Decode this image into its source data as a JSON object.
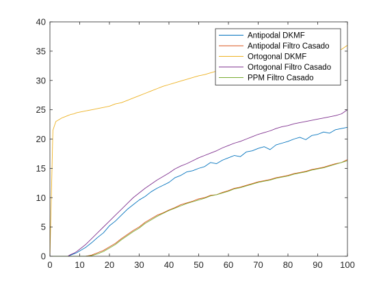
{
  "chart_data": {
    "type": "line",
    "title": "",
    "xlabel": "",
    "ylabel": "",
    "xlim": [
      0,
      100
    ],
    "ylim": [
      0,
      40
    ],
    "xticks": [
      0,
      10,
      20,
      30,
      40,
      50,
      60,
      70,
      80,
      90,
      100
    ],
    "yticks": [
      0,
      5,
      10,
      15,
      20,
      25,
      30,
      35,
      40
    ],
    "grid": false,
    "legend_position": "top-right",
    "x": [
      0,
      1,
      2,
      3,
      4,
      5,
      6,
      7,
      8,
      9,
      10,
      12,
      14,
      16,
      18,
      20,
      22,
      24,
      26,
      28,
      30,
      32,
      34,
      36,
      38,
      40,
      42,
      44,
      46,
      48,
      50,
      52,
      54,
      56,
      58,
      60,
      62,
      64,
      66,
      68,
      70,
      72,
      74,
      76,
      78,
      80,
      82,
      84,
      86,
      88,
      90,
      92,
      94,
      96,
      98,
      100
    ],
    "series": [
      {
        "name": "Antipodal DKMF",
        "color": "#0072BD",
        "values": [
          0,
          0,
          0,
          0,
          0,
          0,
          0,
          0.2,
          0.4,
          0.6,
          0.9,
          1.5,
          2.3,
          3.2,
          4.0,
          5.2,
          6.0,
          7.0,
          8.0,
          8.8,
          9.6,
          10.2,
          11.0,
          11.6,
          12.1,
          12.6,
          13.4,
          13.8,
          14.4,
          14.6,
          15.0,
          15.3,
          16.0,
          15.8,
          16.4,
          16.8,
          17.2,
          17.0,
          17.8,
          18.0,
          18.4,
          18.7,
          18.2,
          19.0,
          19.3,
          19.6,
          20.0,
          20.3,
          19.9,
          20.6,
          20.8,
          21.2,
          21.0,
          21.6,
          21.8,
          22.0
        ]
      },
      {
        "name": "Antipodal Filtro Casado",
        "color": "#D95319",
        "values": [
          0,
          0,
          0,
          0,
          0,
          0,
          0,
          0,
          0,
          0,
          0,
          0,
          0.2,
          0.6,
          1.0,
          1.6,
          2.2,
          3.0,
          3.7,
          4.4,
          5.0,
          5.8,
          6.4,
          7.0,
          7.4,
          7.9,
          8.3,
          8.8,
          9.1,
          9.4,
          9.8,
          10.0,
          10.4,
          10.5,
          10.9,
          11.2,
          11.6,
          11.8,
          12.1,
          12.4,
          12.7,
          12.9,
          13.1,
          13.4,
          13.6,
          13.8,
          14.1,
          14.3,
          14.5,
          14.8,
          15.0,
          15.2,
          15.5,
          15.8,
          16.0,
          16.5
        ]
      },
      {
        "name": "Ortogonal DKMF",
        "color": "#EDB120",
        "values": [
          0,
          21.5,
          23.0,
          23.3,
          23.6,
          23.8,
          24.0,
          24.2,
          24.3,
          24.5,
          24.6,
          24.8,
          25.0,
          25.2,
          25.4,
          25.6,
          26.0,
          26.2,
          26.6,
          27.0,
          27.4,
          27.8,
          28.2,
          28.6,
          29.0,
          29.3,
          29.6,
          29.9,
          30.2,
          30.5,
          30.8,
          31.0,
          31.3,
          31.6,
          31.9,
          32.2,
          32.4,
          32.7,
          32.9,
          33.1,
          33.3,
          33.5,
          33.6,
          33.8,
          33.9,
          34.0,
          34.2,
          34.3,
          34.4,
          34.5,
          34.6,
          34.7,
          34.8,
          35.0,
          35.3,
          36.0
        ]
      },
      {
        "name": "Ortogonal Filtro Casado",
        "color": "#7E2F8E",
        "values": [
          0,
          0,
          0,
          0,
          0,
          0,
          0,
          0.3,
          0.5,
          0.8,
          1.2,
          2.0,
          3.0,
          4.0,
          5.0,
          6.0,
          7.0,
          8.0,
          9.0,
          10.0,
          10.8,
          11.6,
          12.3,
          13.0,
          13.6,
          14.2,
          14.9,
          15.4,
          15.8,
          16.3,
          16.8,
          17.2,
          17.6,
          18.0,
          18.5,
          18.9,
          19.3,
          19.6,
          20.0,
          20.4,
          20.8,
          21.1,
          21.4,
          21.8,
          22.1,
          22.3,
          22.6,
          22.8,
          23.0,
          23.2,
          23.4,
          23.6,
          23.8,
          24.0,
          24.3,
          25.0
        ]
      },
      {
        "name": "PPM Filtro Casado",
        "color": "#77AC30",
        "values": [
          0,
          0,
          0,
          0,
          0,
          0,
          0,
          0,
          0,
          0,
          0,
          0,
          0.1,
          0.4,
          0.8,
          1.4,
          2.0,
          2.8,
          3.5,
          4.2,
          4.8,
          5.6,
          6.2,
          6.8,
          7.3,
          7.8,
          8.2,
          8.6,
          9.0,
          9.3,
          9.6,
          9.9,
          10.3,
          10.5,
          10.8,
          11.1,
          11.5,
          11.7,
          12.0,
          12.3,
          12.6,
          12.8,
          13.0,
          13.3,
          13.5,
          13.7,
          14.0,
          14.2,
          14.4,
          14.7,
          14.9,
          15.1,
          15.4,
          15.7,
          16.0,
          16.3
        ]
      }
    ]
  }
}
